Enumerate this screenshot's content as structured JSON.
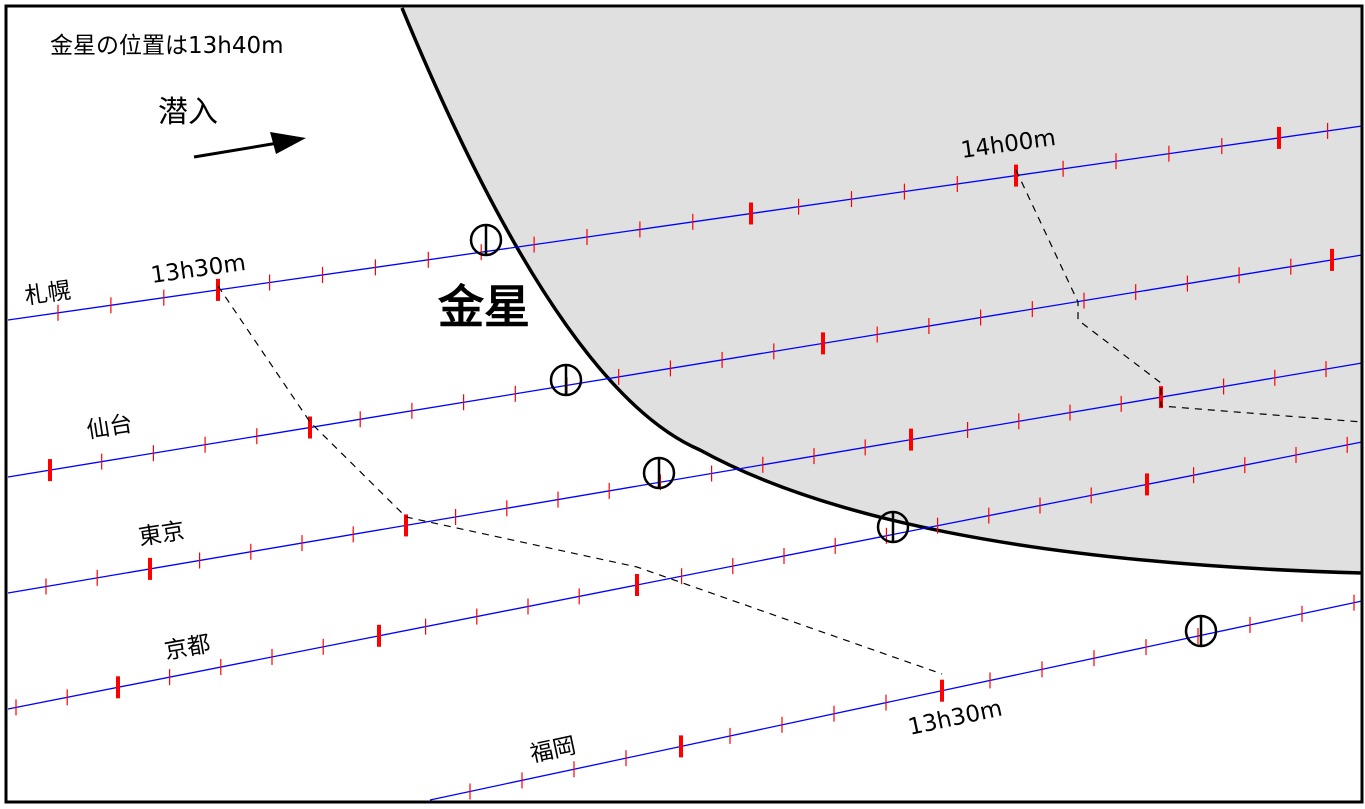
{
  "header": {
    "venus_position": "金星の位置は13h40m",
    "ingress_label": "潜入"
  },
  "venus_label": "金星",
  "time_labels": {
    "sapporo_start": "13h30m",
    "sapporo_end": "14h00m",
    "fukuoka": "13h30m"
  },
  "cities": [
    {
      "key": "sapporo",
      "name": "札幌"
    },
    {
      "key": "sendai",
      "name": "仙台"
    },
    {
      "key": "tokyo",
      "name": "東京"
    },
    {
      "key": "kyoto",
      "name": "京都"
    },
    {
      "key": "fukuoka",
      "name": "福岡"
    }
  ],
  "colors": {
    "track": "#0000ff",
    "tick": "#ff0000",
    "venus_disk": "#e0e0e0",
    "outline": "#000000",
    "dashed": "#000000"
  },
  "icons": {
    "venus_marker": "circle-with-vertical-bar",
    "direction_arrow": "arrow-right"
  }
}
